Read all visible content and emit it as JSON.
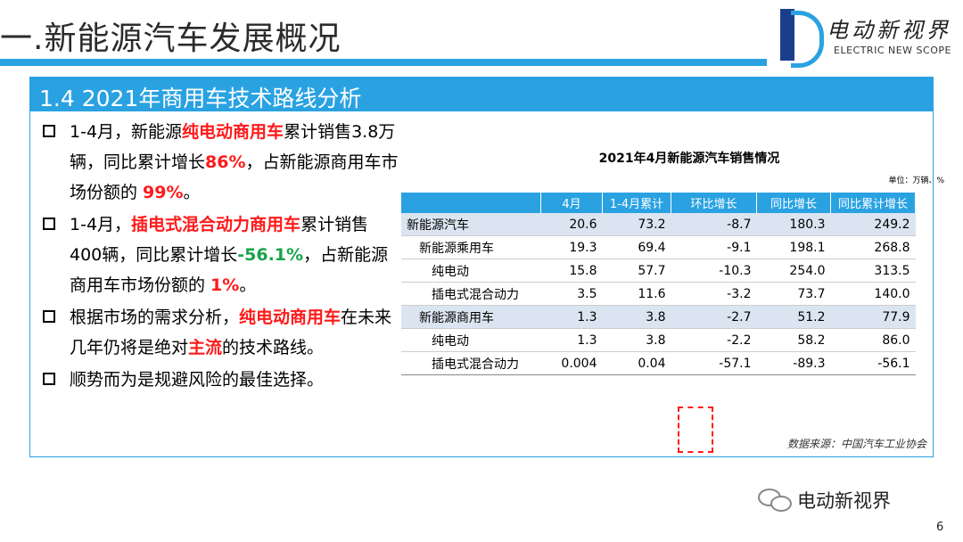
{
  "title": "一.新能源汽车发展概况",
  "logo": {
    "cn": "电动新视界",
    "en": "ELECTRIC NEW SCOPE"
  },
  "section": "1.4 2021年商用车技术路线分析",
  "bullets": [
    {
      "t1": "1-4月，新能源",
      "h1": "纯电动商用车",
      "t2": "累计销售3.8万辆，同比累计增长",
      "h2": "86%",
      "t3": "，占新能源商用车市场份额的 ",
      "h3": "99%",
      "t4": "。"
    },
    {
      "t1": "1-4月，",
      "h1": "插电式混合动力商用车",
      "t2": "累计销售400辆，同比累计增长",
      "h2": "-56.1%",
      "t3": "，占新能源商用车市场份额的 ",
      "h3": "1%",
      "t4": "。"
    },
    {
      "t1": "根据市场的需求分析，",
      "h1": "纯电动商用车",
      "t2": "在未来几年仍将是绝对",
      "h2": "主流",
      "t3": "的技术路线。"
    },
    {
      "t1": "顺势而为是规避风险的最佳选择。"
    }
  ],
  "table": {
    "title": "2021年4月新能源汽车销售情况",
    "unit": "单位：万辆、%",
    "headers": [
      "",
      "4月",
      "1-4月累计",
      "环比增长",
      "同比增长",
      "同比累计增长"
    ],
    "rows": [
      [
        "新能源汽车",
        "20.6",
        "73.2",
        "-8.7",
        "180.3",
        "249.2"
      ],
      [
        "新能源乘用车",
        "19.3",
        "69.4",
        "-9.1",
        "198.1",
        "268.8"
      ],
      [
        "纯电动",
        "15.8",
        "57.7",
        "-10.3",
        "254.0",
        "313.5"
      ],
      [
        "插电式混合动力",
        "3.5",
        "11.6",
        "-3.2",
        "73.7",
        "140.0"
      ],
      [
        "新能源商用车",
        "1.3",
        "3.8",
        "-2.7",
        "51.2",
        "77.9"
      ],
      [
        "纯电动",
        "1.3",
        "3.8",
        "-2.2",
        "58.2",
        "86.0"
      ],
      [
        "插电式混合动力",
        "0.004",
        "0.04",
        "-57.1",
        "-89.3",
        "-56.1"
      ]
    ],
    "source": "数据来源：中国汽车工业协会"
  },
  "watermark": "电动新视界",
  "page_number": "6",
  "colors": {
    "accent": "#2aa2e2",
    "highlight_red": "#ff1a1a",
    "highlight_green": "#18a34a"
  }
}
